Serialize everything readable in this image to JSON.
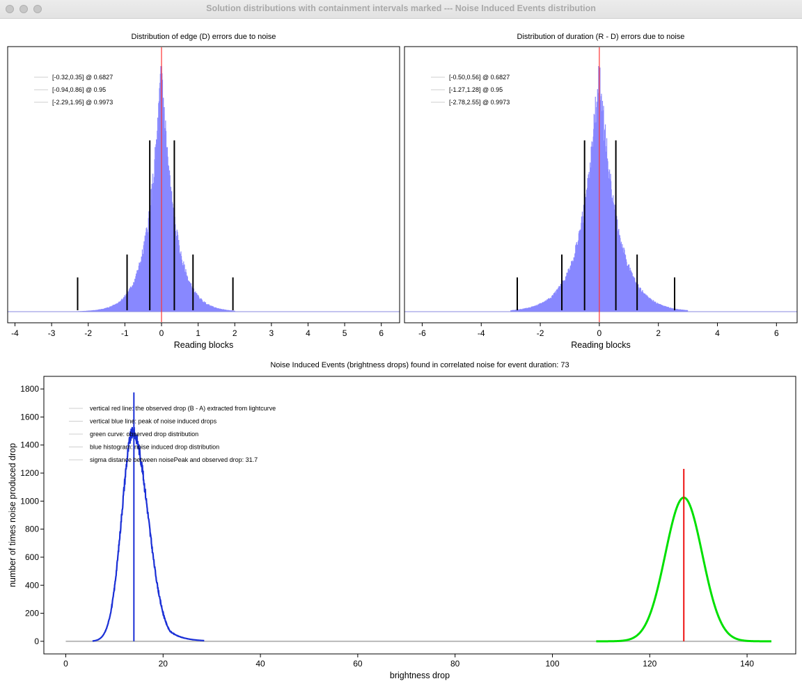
{
  "window": {
    "title": "Solution distributions with containment intervals marked --- Noise Induced Events distribution"
  },
  "chart_data": [
    {
      "type": "histogram",
      "title": "Distribution of edge (D) errors due to noise",
      "xlabel": "Reading blocks",
      "ylabel": "",
      "xlim": [
        -4.2,
        6.5
      ],
      "xticks": [
        -4,
        -3,
        -2,
        -1,
        0,
        1,
        2,
        3,
        4,
        5,
        6
      ],
      "center_line": 0,
      "distribution": {
        "type": "laplace-like",
        "center": 0.0,
        "scale": 0.36,
        "left_tail_extent": -2.3,
        "right_tail_extent": 2.0
      },
      "legend": [
        "[-0.32,0.35] @ 0.6827",
        "[-0.94,0.86] @ 0.95",
        "[-2.29,1.95] @ 0.9973"
      ],
      "legend_position": "top-left",
      "intervals": [
        {
          "lo": -0.32,
          "hi": 0.35,
          "level": 0.6827,
          "height": 0.75
        },
        {
          "lo": -0.94,
          "hi": 0.86,
          "level": 0.95,
          "height": 0.25
        },
        {
          "lo": -2.29,
          "hi": 1.95,
          "level": 0.9973,
          "height": 0.15
        }
      ],
      "colors": {
        "bars": "#7b7bff",
        "center": "#ff3333",
        "intervals": "#000000",
        "baseline": "#8a8adf"
      }
    },
    {
      "type": "histogram",
      "title": "Distribution of duration (R - D) errors due to noise",
      "xlabel": "Reading blocks",
      "ylabel": "",
      "xlim": [
        -6.6,
        6.7
      ],
      "xticks": [
        -6,
        -4,
        -2,
        0,
        2,
        4,
        6
      ],
      "center_line": 0,
      "distribution": {
        "type": "laplace-like",
        "center": 0.0,
        "scale": 0.58,
        "left_tail_extent": -3.0,
        "right_tail_extent": 3.0
      },
      "legend": [
        "[-0.50,0.56] @ 0.6827",
        "[-1.27,1.28] @ 0.95",
        "[-2.78,2.55] @ 0.9973"
      ],
      "legend_position": "top-left",
      "intervals": [
        {
          "lo": -0.5,
          "hi": 0.56,
          "level": 0.6827,
          "height": 0.75
        },
        {
          "lo": -1.27,
          "hi": 1.28,
          "level": 0.95,
          "height": 0.25
        },
        {
          "lo": -2.78,
          "hi": 2.55,
          "level": 0.9973,
          "height": 0.15
        }
      ],
      "colors": {
        "bars": "#7b7bff",
        "center": "#ff3333",
        "intervals": "#000000",
        "baseline": "#8a8adf"
      }
    },
    {
      "type": "line",
      "title": "Noise Induced Events (brightness drops) found in correlated noise for event duration: 73",
      "xlabel": "brightness drop",
      "ylabel": "number of times noise produced drop",
      "xlim": [
        -4.5,
        150
      ],
      "ylim": [
        -90,
        1890
      ],
      "xticks": [
        0,
        20,
        40,
        60,
        80,
        100,
        120,
        140
      ],
      "yticks": [
        0,
        200,
        400,
        600,
        800,
        1000,
        1200,
        1400,
        1600,
        1800
      ],
      "legend": [
        "vertical red line: the observed drop (B - A) extracted from lightcurve",
        "vertical blue line: peak of noise induced drops",
        "green curve: observed drop distribution",
        "blue histogram: noise induced drop distribution",
        "sigma distance between noisePeak and observed drop: 31.7"
      ],
      "legend_position": "top-left",
      "series": [
        {
          "name": "blue histogram",
          "color": "#1a2fd6",
          "shape": "skewed-gaussian",
          "x_range": [
            5.5,
            28.5
          ],
          "peak_x": 13.8,
          "peak_y": 1490,
          "sigma_left": 2.3,
          "sigma_right": 3.1
        },
        {
          "name": "green curve",
          "color": "#00e000",
          "shape": "gaussian",
          "x_range": [
            109,
            145
          ],
          "peak_x": 127,
          "peak_y": 1025,
          "sigma": 3.8
        }
      ],
      "baseline": {
        "x_range": [
          0,
          145
        ],
        "y": 0,
        "color": "#b9b9b9"
      },
      "vlines": [
        {
          "name": "noise peak",
          "x": 14,
          "y_top": 1775,
          "color": "#1a2fd6"
        },
        {
          "name": "observed drop",
          "x": 127,
          "y_top": 1230,
          "color": "#ee1111"
        }
      ]
    }
  ]
}
